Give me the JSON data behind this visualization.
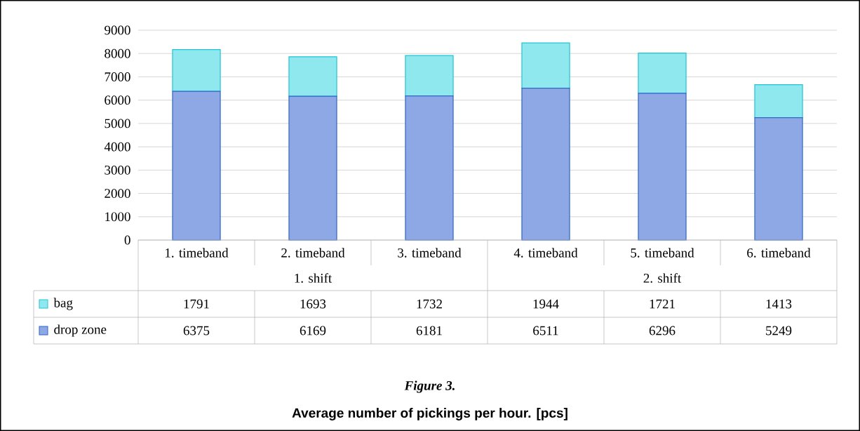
{
  "chart_data": {
    "type": "bar",
    "stacked": true,
    "title": "Average number of pickings per hour. [pcs]",
    "annotations": [
      "1. shift",
      "2. shift",
      "Figure 3."
    ],
    "categories": [
      "1. timeband",
      "2. timeband",
      "3. timeband",
      "4. timeband",
      "5. timeband",
      "6. timeband"
    ],
    "series": [
      {
        "name": "drop zone",
        "color": "#8ea8e6",
        "values": [
          6375,
          6169,
          6181,
          6511,
          6296,
          5249
        ]
      },
      {
        "name": "bag",
        "color": "#8ee8ee",
        "values": [
          1791,
          1693,
          1732,
          1944,
          1721,
          1413
        ]
      }
    ],
    "ylim": [
      0,
      9000
    ],
    "yticks": [
      0,
      1000,
      2000,
      3000,
      4000,
      5000,
      6000,
      7000,
      8000,
      9000
    ],
    "grid": "y",
    "legend": "bottom",
    "data_labels": true
  }
}
